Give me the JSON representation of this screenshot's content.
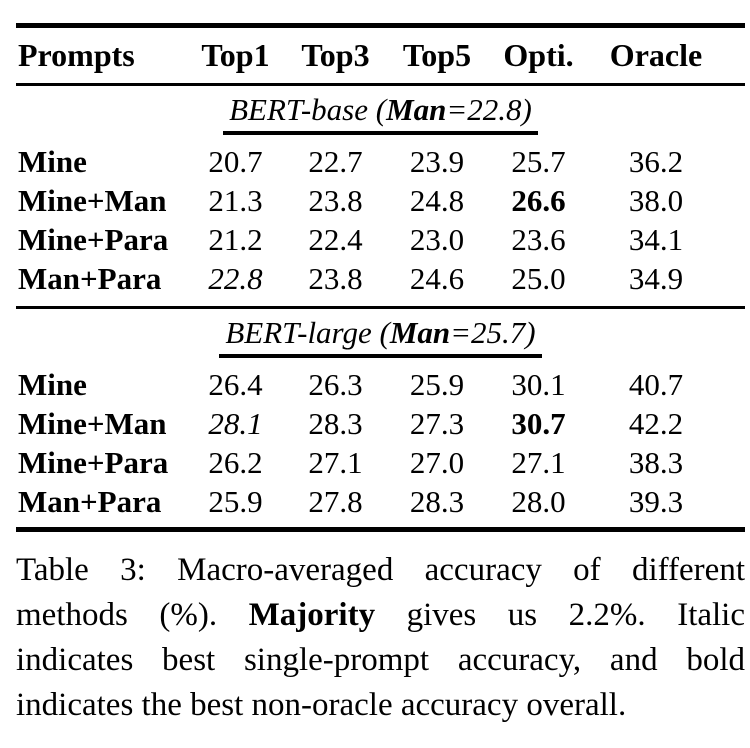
{
  "colors": {
    "background": "#ffffff",
    "text": "#000000",
    "rule": "#000000"
  },
  "table": {
    "columns": [
      "Prompts",
      "Top1",
      "Top3",
      "Top5",
      "Opti.",
      "Oracle"
    ],
    "sections": [
      {
        "header_runs": [
          {
            "text": "BERT-base (",
            "style": "italic"
          },
          {
            "text": "Man",
            "style": "bold-italic"
          },
          {
            "text": "=22.8)",
            "style": "italic"
          }
        ],
        "rows": [
          {
            "label": "Mine",
            "cells": [
              {
                "text": "20.7"
              },
              {
                "text": "22.7"
              },
              {
                "text": "23.9"
              },
              {
                "text": "25.7"
              },
              {
                "text": "36.2"
              }
            ]
          },
          {
            "label": "Mine+Man",
            "cells": [
              {
                "text": "21.3"
              },
              {
                "text": "23.8"
              },
              {
                "text": "24.8"
              },
              {
                "text": "26.6",
                "style": "bold"
              },
              {
                "text": "38.0"
              }
            ]
          },
          {
            "label": "Mine+Para",
            "cells": [
              {
                "text": "21.2"
              },
              {
                "text": "22.4"
              },
              {
                "text": "23.0"
              },
              {
                "text": "23.6"
              },
              {
                "text": "34.1"
              }
            ]
          },
          {
            "label": "Man+Para",
            "cells": [
              {
                "text": "22.8",
                "style": "italic"
              },
              {
                "text": "23.8"
              },
              {
                "text": "24.6"
              },
              {
                "text": "25.0"
              },
              {
                "text": "34.9"
              }
            ]
          }
        ]
      },
      {
        "header_runs": [
          {
            "text": "BERT-large (",
            "style": "italic"
          },
          {
            "text": "Man",
            "style": "bold-italic"
          },
          {
            "text": "=25.7)",
            "style": "italic"
          }
        ],
        "rows": [
          {
            "label": "Mine",
            "cells": [
              {
                "text": "26.4"
              },
              {
                "text": "26.3"
              },
              {
                "text": "25.9"
              },
              {
                "text": "30.1"
              },
              {
                "text": "40.7"
              }
            ]
          },
          {
            "label": "Mine+Man",
            "cells": [
              {
                "text": "28.1",
                "style": "italic"
              },
              {
                "text": "28.3"
              },
              {
                "text": "27.3"
              },
              {
                "text": "30.7",
                "style": "bold"
              },
              {
                "text": "42.2"
              }
            ]
          },
          {
            "label": "Mine+Para",
            "cells": [
              {
                "text": "26.2"
              },
              {
                "text": "27.1"
              },
              {
                "text": "27.0"
              },
              {
                "text": "27.1"
              },
              {
                "text": "38.3"
              }
            ]
          },
          {
            "label": "Man+Para",
            "cells": [
              {
                "text": "25.9"
              },
              {
                "text": "27.8"
              },
              {
                "text": "28.3"
              },
              {
                "text": "28.0"
              },
              {
                "text": "39.3"
              }
            ]
          }
        ]
      }
    ]
  },
  "caption": {
    "lines": [
      {
        "justify": true,
        "runs": [
          {
            "text": "Table 3: Macro-averaged accuracy of different"
          }
        ]
      },
      {
        "justify": true,
        "runs": [
          {
            "text": "methods (%). "
          },
          {
            "text": "Majority",
            "style": "bold"
          },
          {
            "text": " gives us 2.2%. Italic"
          }
        ]
      },
      {
        "justify": true,
        "runs": [
          {
            "text": "indicates best single-prompt accuracy, and bold"
          }
        ]
      },
      {
        "justify": false,
        "runs": [
          {
            "text": "indicates the best non-oracle accuracy overall."
          }
        ]
      }
    ]
  }
}
